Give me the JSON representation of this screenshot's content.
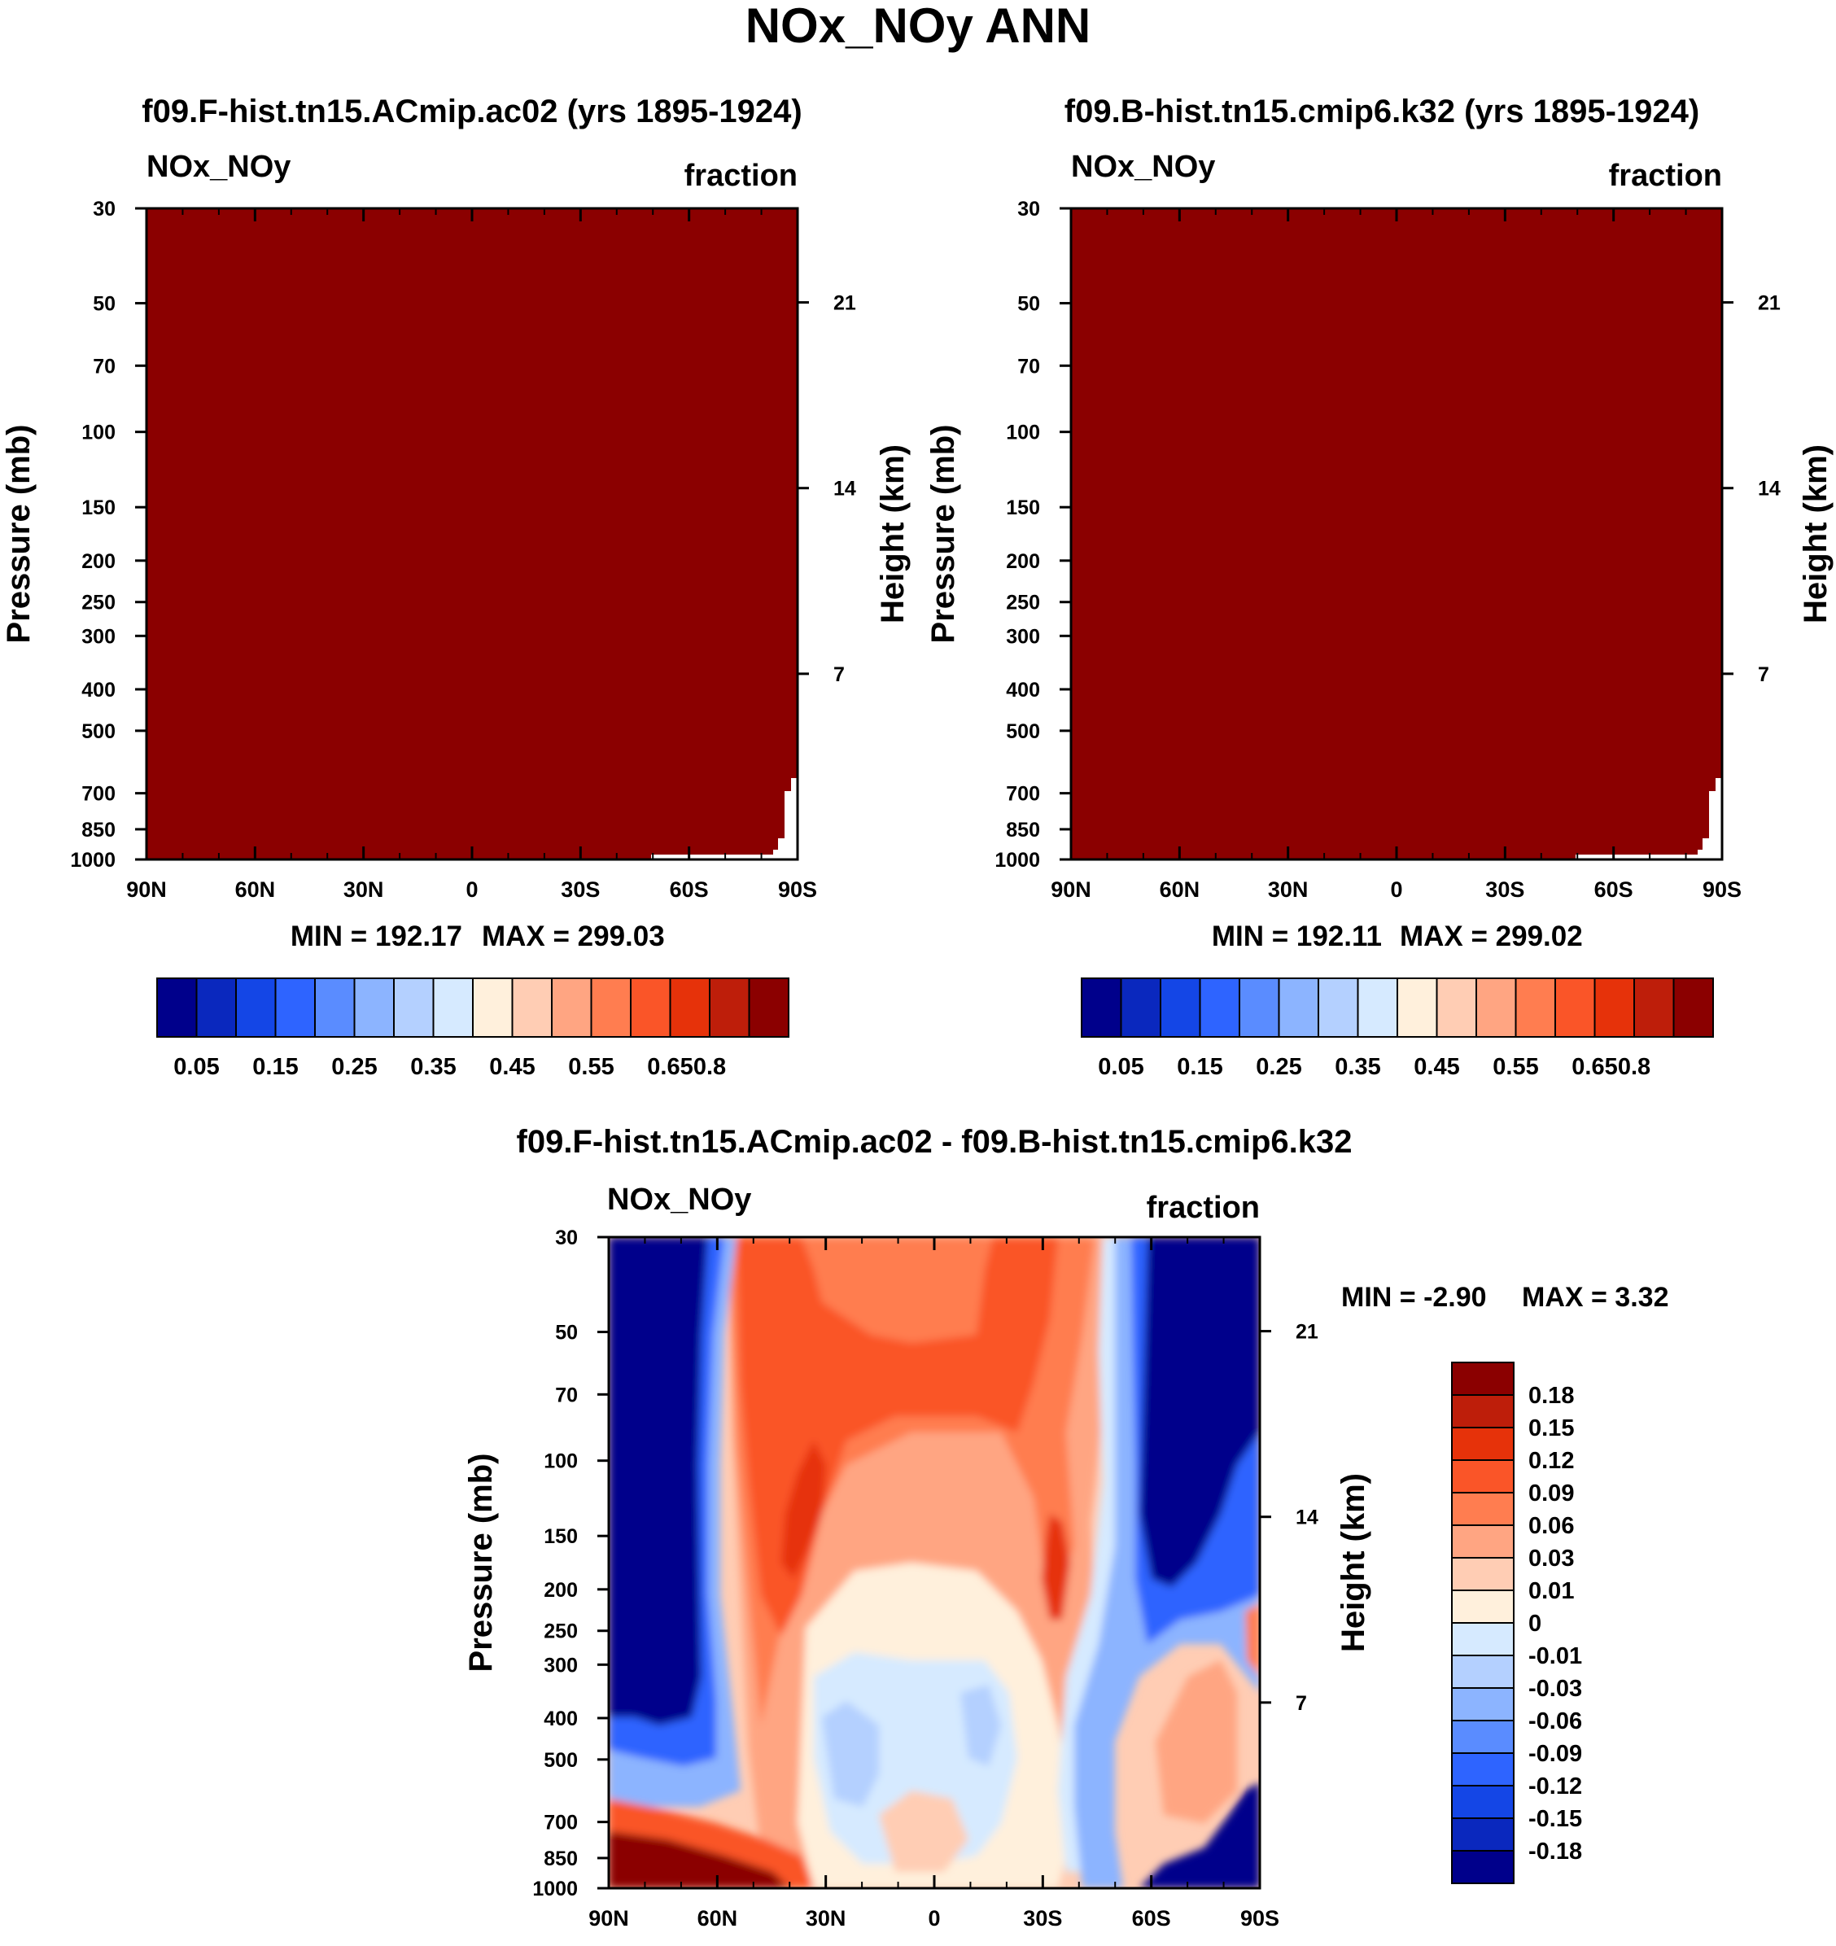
{
  "title": "NOx_NOy ANN",
  "colors": {
    "dark_red": "#8b0000",
    "ink": "#000000",
    "paper": "#ffffff"
  },
  "chart_data": [
    {
      "type": "heatmap",
      "title": "f09.F-hist.tn15.ACmip.ac02 (yrs 1895-1924)",
      "variable": "NOx_NOy",
      "units": "fraction",
      "xlabel": "",
      "ylabel": "Pressure (mb)",
      "y2label": "Height (km)",
      "x_ticks": [
        "90N",
        "60N",
        "30N",
        "0",
        "30S",
        "60S",
        "90S"
      ],
      "y_ticks": [
        "30",
        "50",
        "70",
        "100",
        "150",
        "200",
        "250",
        "300",
        "400",
        "500",
        "700",
        "850",
        "1000"
      ],
      "y2_ticks": [
        "21",
        "14",
        "7"
      ],
      "ylim": [
        1000,
        30
      ],
      "min_label": "MIN = 192.17",
      "max_label": "MAX = 299.03",
      "colorbar": {
        "colors": [
          "#00008b",
          "#0a28be",
          "#1446e6",
          "#2e64ff",
          "#5a8cff",
          "#8cb4ff",
          "#b4d0ff",
          "#d6eaff",
          "#fff0dc",
          "#ffcdb4",
          "#ffa582",
          "#ff7d50",
          "#fa5528",
          "#e6320a",
          "#be1e0a",
          "#8b0000"
        ],
        "labels": [
          "0.05",
          "0.15",
          "0.25",
          "0.35",
          "0.45",
          "0.55",
          "0.65",
          "0.8"
        ]
      }
    },
    {
      "type": "heatmap",
      "title": "f09.B-hist.tn15.cmip6.k32 (yrs 1895-1924)",
      "variable": "NOx_NOy",
      "units": "fraction",
      "xlabel": "",
      "ylabel": "Pressure (mb)",
      "y2label": "Height (km)",
      "x_ticks": [
        "90N",
        "60N",
        "30N",
        "0",
        "30S",
        "60S",
        "90S"
      ],
      "y_ticks": [
        "30",
        "50",
        "70",
        "100",
        "150",
        "200",
        "250",
        "300",
        "400",
        "500",
        "700",
        "850",
        "1000"
      ],
      "y2_ticks": [
        "21",
        "14",
        "7"
      ],
      "ylim": [
        1000,
        30
      ],
      "min_label": "MIN = 192.11",
      "max_label": "MAX = 299.02",
      "colorbar": {
        "colors": [
          "#00008b",
          "#0a28be",
          "#1446e6",
          "#2e64ff",
          "#5a8cff",
          "#8cb4ff",
          "#b4d0ff",
          "#d6eaff",
          "#fff0dc",
          "#ffcdb4",
          "#ffa582",
          "#ff7d50",
          "#fa5528",
          "#e6320a",
          "#be1e0a",
          "#8b0000"
        ],
        "labels": [
          "0.05",
          "0.15",
          "0.25",
          "0.35",
          "0.45",
          "0.55",
          "0.65",
          "0.8"
        ]
      }
    },
    {
      "type": "heatmap",
      "title": "f09.F-hist.tn15.ACmip.ac02 - f09.B-hist.tn15.cmip6.k32",
      "variable": "NOx_NOy",
      "units": "fraction",
      "xlabel": "",
      "ylabel": "Pressure (mb)",
      "y2label": "Height (km)",
      "x_ticks": [
        "90N",
        "60N",
        "30N",
        "0",
        "30S",
        "60S",
        "90S"
      ],
      "y_ticks": [
        "30",
        "50",
        "70",
        "100",
        "150",
        "200",
        "250",
        "300",
        "400",
        "500",
        "700",
        "850",
        "1000"
      ],
      "y2_ticks": [
        "21",
        "14",
        "7"
      ],
      "ylim": [
        1000,
        30
      ],
      "min_label": "MIN =  -2.90",
      "max_label": "MAX =   3.32",
      "colorbar": {
        "colors": [
          "#8b0000",
          "#be1e0a",
          "#e6320a",
          "#fa5528",
          "#ff7d50",
          "#ffa582",
          "#ffcdb4",
          "#fff0dc",
          "#d6eaff",
          "#b4d0ff",
          "#8cb4ff",
          "#5a8cff",
          "#2e64ff",
          "#1446e6",
          "#0a28be",
          "#00008b"
        ],
        "labels": [
          "0.18",
          "0.15",
          "0.12",
          "0.09",
          "0.06",
          "0.03",
          "0.01",
          "0",
          "-0.01",
          "-0.03",
          "-0.06",
          "-0.09",
          "-0.12",
          "-0.15",
          "-0.18"
        ]
      }
    }
  ]
}
